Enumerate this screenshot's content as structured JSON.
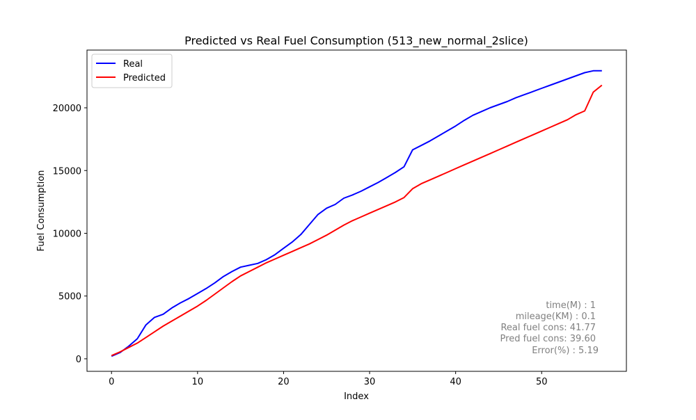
{
  "chart_data": {
    "type": "line",
    "title": "Predicted vs Real Fuel Consumption (513_new_normal_2slice)",
    "xlabel": "Index",
    "ylabel": "Fuel Consumption",
    "xlim": [
      -2.85,
      59.85
    ],
    "ylim": [
      -1000,
      24600
    ],
    "xticks": [
      0,
      10,
      20,
      30,
      40,
      50
    ],
    "yticks": [
      0,
      5000,
      10000,
      15000,
      20000
    ],
    "legend_position": "upper-left",
    "grid": false,
    "series": [
      {
        "name": "Real",
        "color": "#0000ff",
        "x": [
          0,
          1,
          2,
          3,
          4,
          5,
          6,
          7,
          8,
          9,
          10,
          11,
          12,
          13,
          14,
          15,
          16,
          17,
          18,
          19,
          20,
          21,
          22,
          23,
          24,
          25,
          26,
          27,
          28,
          29,
          30,
          31,
          32,
          33,
          34,
          35,
          36,
          37,
          38,
          39,
          40,
          41,
          42,
          43,
          44,
          45,
          46,
          47,
          48,
          49,
          50,
          51,
          52,
          53,
          54,
          55,
          56,
          57
        ],
        "values": [
          200,
          500,
          1000,
          1600,
          2700,
          3300,
          3550,
          4050,
          4450,
          4800,
          5200,
          5600,
          6050,
          6550,
          6950,
          7300,
          7450,
          7600,
          7900,
          8300,
          8800,
          9300,
          9900,
          10700,
          11500,
          12000,
          12300,
          12800,
          13050,
          13350,
          13700,
          14050,
          14450,
          14850,
          15300,
          16650,
          17000,
          17350,
          17750,
          18150,
          18550,
          19000,
          19400,
          19700,
          20000,
          20250,
          20500,
          20800,
          21050,
          21300,
          21550,
          21800,
          22050,
          22300,
          22550,
          22800,
          22950,
          22950
        ]
      },
      {
        "name": "Predicted",
        "color": "#ff0000",
        "x": [
          0,
          1,
          2,
          3,
          4,
          5,
          6,
          7,
          8,
          9,
          10,
          11,
          12,
          13,
          14,
          15,
          16,
          17,
          18,
          19,
          20,
          21,
          22,
          23,
          24,
          25,
          26,
          27,
          28,
          29,
          30,
          31,
          32,
          33,
          34,
          35,
          36,
          37,
          38,
          39,
          40,
          41,
          42,
          43,
          44,
          45,
          46,
          47,
          48,
          49,
          50,
          51,
          52,
          53,
          54,
          55,
          56,
          57
        ],
        "values": [
          250,
          550,
          900,
          1250,
          1700,
          2150,
          2600,
          3000,
          3400,
          3800,
          4200,
          4650,
          5150,
          5650,
          6150,
          6600,
          6950,
          7300,
          7650,
          7950,
          8250,
          8550,
          8850,
          9150,
          9500,
          9850,
          10250,
          10650,
          11000,
          11300,
          11600,
          11900,
          12200,
          12500,
          12850,
          13550,
          13950,
          14250,
          14550,
          14850,
          15150,
          15450,
          15750,
          16050,
          16350,
          16650,
          16950,
          17250,
          17550,
          17850,
          18150,
          18450,
          18750,
          19050,
          19450,
          19750,
          21250,
          21800
        ]
      }
    ],
    "annotation_lines": [
      "time(M) : 1",
      "mileage(KM) : 0.1",
      "Real fuel cons: 41.77",
      "Pred fuel cons: 39.60",
      "Error(%) : 5.19"
    ]
  }
}
